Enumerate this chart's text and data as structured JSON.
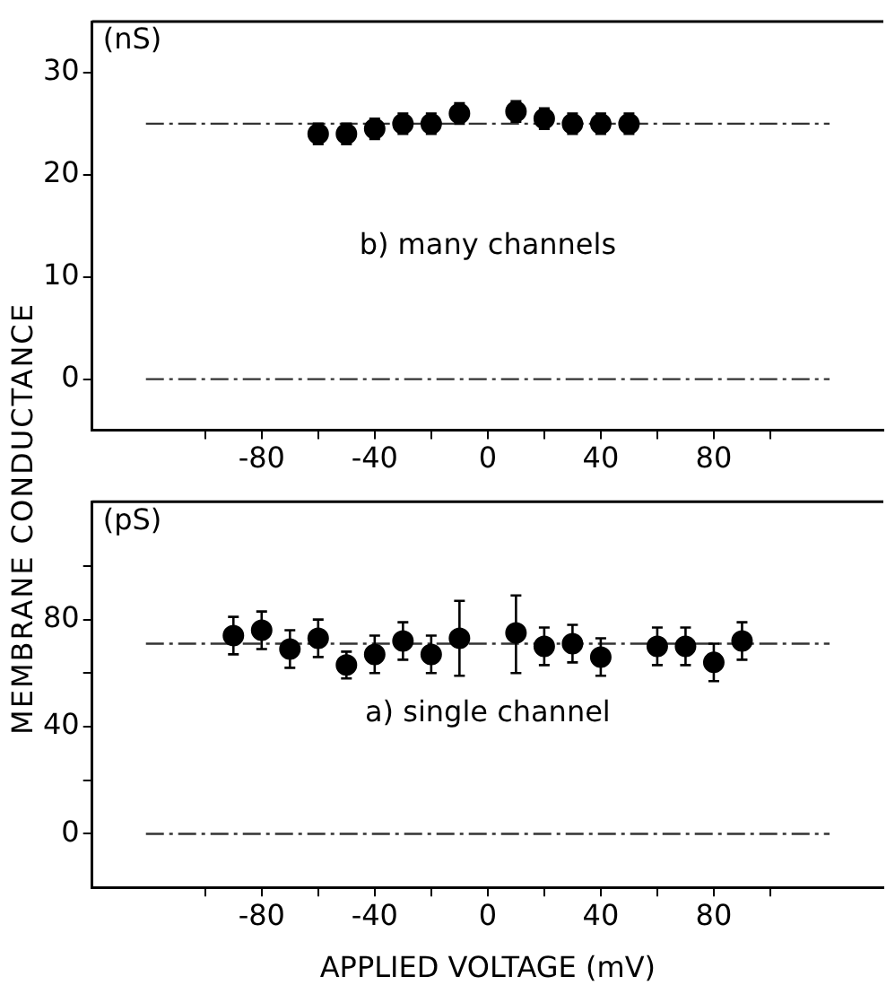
{
  "chart_data": [
    {
      "type": "scatter",
      "ylabel": "MEMBRANE CONDUCTANCE",
      "annotations": [
        "(nS)",
        "b) many channels"
      ],
      "x": [
        -60,
        -50,
        -40,
        -30,
        -20,
        -10,
        10,
        20,
        30,
        40,
        50
      ],
      "series": [
        {
          "color": "#000000",
          "values": [
            24,
            24,
            24.5,
            25,
            25,
            26,
            26.2,
            25.5,
            25,
            25,
            25
          ],
          "errors": [
            1,
            1,
            1,
            1,
            1,
            1,
            1,
            1,
            1,
            1,
            1
          ]
        }
      ],
      "xlim": [
        -140,
        140
      ],
      "xticks": [
        {
          "value": -100,
          "label": null
        },
        -80,
        {
          "value": -60,
          "label": null
        },
        -40,
        {
          "value": -20,
          "label": null
        },
        0,
        {
          "value": 20,
          "label": null
        },
        40,
        {
          "value": 60,
          "label": null
        },
        80,
        {
          "value": 100,
          "label": null
        }
      ],
      "ylim": [
        -5,
        35
      ],
      "yticks": [
        0,
        10,
        20,
        30
      ],
      "ref_lines": [
        {
          "axis": "y",
          "value": 25,
          "line_style": "dashed"
        },
        {
          "axis": "y",
          "value": 0,
          "line_style": "dashed"
        }
      ],
      "marker": "circle"
    },
    {
      "type": "scatter",
      "xlabel": "APPLIED VOLTAGE (mV)",
      "annotations": [
        "(pS)",
        "a) single channel"
      ],
      "x": [
        -90,
        -80,
        -70,
        -60,
        -50,
        -40,
        -30,
        -20,
        -10,
        10,
        20,
        30,
        40,
        60,
        70,
        80,
        90
      ],
      "series": [
        {
          "color": "#000000",
          "values": [
            74,
            76,
            69,
            73,
            63,
            67,
            72,
            67,
            73,
            75,
            70,
            71,
            66,
            70,
            70,
            64,
            72
          ],
          "errors": [
            7,
            7,
            7,
            7,
            5,
            7,
            7,
            7,
            [
              59,
              87
            ],
            [
              60,
              89
            ],
            7,
            7,
            7,
            7,
            7,
            7,
            7
          ]
        }
      ],
      "xlim": [
        -140,
        140
      ],
      "xticks": [
        {
          "value": -100,
          "label": null
        },
        -80,
        {
          "value": -60,
          "label": null
        },
        -40,
        {
          "value": -20,
          "label": null
        },
        0,
        {
          "value": 20,
          "label": null
        },
        40,
        {
          "value": 60,
          "label": null
        },
        80,
        {
          "value": 100,
          "label": null
        }
      ],
      "ylim": [
        -20,
        124
      ],
      "yticks": [
        0,
        {
          "value": 20,
          "label": null
        },
        40,
        {
          "value": 60,
          "label": null
        },
        80,
        {
          "value": 100,
          "label": null
        }
      ],
      "ref_lines": [
        {
          "axis": "y",
          "value": 71,
          "line_style": "dashed"
        },
        {
          "axis": "y",
          "value": 0,
          "line_style": "dashed"
        }
      ],
      "marker": "circle"
    }
  ]
}
